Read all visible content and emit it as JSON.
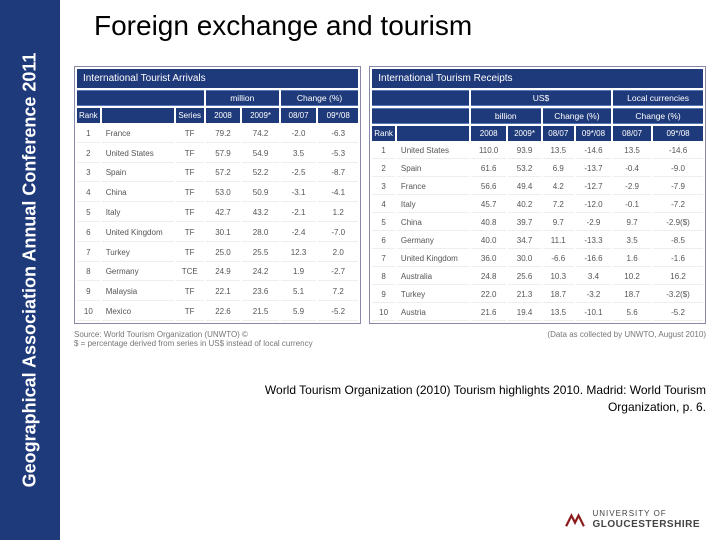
{
  "sidebar": {
    "label": "Geographical Association Annual Conference 2011"
  },
  "title": "Foreign exchange and tourism",
  "left_table": {
    "header_title": "International Tourist Arrivals",
    "group_headers": [
      "",
      "",
      "",
      "million",
      "Change (%)"
    ],
    "col_headers": [
      "Rank",
      "",
      "Series",
      "2008",
      "2009*",
      "08/07",
      "09*/08"
    ],
    "rows": [
      [
        "1",
        "France",
        "TF",
        "79.2",
        "74.2",
        "-2.0",
        "-6.3"
      ],
      [
        "2",
        "United States",
        "TF",
        "57.9",
        "54.9",
        "3.5",
        "-5.3"
      ],
      [
        "3",
        "Spain",
        "TF",
        "57.2",
        "52.2",
        "-2.5",
        "-8.7"
      ],
      [
        "4",
        "China",
        "TF",
        "53.0",
        "50.9",
        "-3.1",
        "-4.1"
      ],
      [
        "5",
        "Italy",
        "TF",
        "42.7",
        "43.2",
        "-2.1",
        "1.2"
      ],
      [
        "6",
        "United Kingdom",
        "TF",
        "30.1",
        "28.0",
        "-2.4",
        "-7.0"
      ],
      [
        "7",
        "Turkey",
        "TF",
        "25.0",
        "25.5",
        "12.3",
        "2.0"
      ],
      [
        "8",
        "Germany",
        "TCE",
        "24.9",
        "24.2",
        "1.9",
        "-2.7"
      ],
      [
        "9",
        "Malaysia",
        "TF",
        "22.1",
        "23.6",
        "5.1",
        "7.2"
      ],
      [
        "10",
        "Mexico",
        "TF",
        "22.6",
        "21.5",
        "5.9",
        "-5.2"
      ]
    ]
  },
  "right_table": {
    "header_title": "International Tourism Receipts",
    "group_headers": [
      "",
      "",
      "US$",
      "Local currencies"
    ],
    "group_sub": [
      "",
      "",
      "billion",
      "Change (%)",
      "Change (%)"
    ],
    "col_headers": [
      "Rank",
      "",
      "2008",
      "2009*",
      "08/07",
      "09*/08",
      "08/07",
      "09*/08"
    ],
    "rows": [
      [
        "1",
        "United States",
        "110.0",
        "93.9",
        "13.5",
        "-14.6",
        "13.5",
        "-14.6"
      ],
      [
        "2",
        "Spain",
        "61.6",
        "53.2",
        "6.9",
        "-13.7",
        "-0.4",
        "-9.0"
      ],
      [
        "3",
        "France",
        "56.6",
        "49.4",
        "4.2",
        "-12.7",
        "-2.9",
        "-7.9"
      ],
      [
        "4",
        "Italy",
        "45.7",
        "40.2",
        "7.2",
        "-12.0",
        "-0.1",
        "-7.2"
      ],
      [
        "5",
        "China",
        "40.8",
        "39.7",
        "9.7",
        "-2.9",
        "9.7",
        "-2.9($)"
      ],
      [
        "6",
        "Germany",
        "40.0",
        "34.7",
        "11.1",
        "-13.3",
        "3.5",
        "-8.5"
      ],
      [
        "7",
        "United Kingdom",
        "36.0",
        "30.0",
        "-6.6",
        "-16.6",
        "1.6",
        "-1.6"
      ],
      [
        "8",
        "Australia",
        "24.8",
        "25.6",
        "10.3",
        "3.4",
        "10.2",
        "16.2"
      ],
      [
        "9",
        "Turkey",
        "22.0",
        "21.3",
        "18.7",
        "-3.2",
        "18.7",
        "-3.2($)"
      ],
      [
        "10",
        "Austria",
        "21.6",
        "19.4",
        "13.5",
        "-10.1",
        "5.6",
        "-5.2"
      ]
    ]
  },
  "footnotes": {
    "left": "Source: World Tourism Organization (UNWTO) ©",
    "left2": "$ = percentage derived from series in US$ instead of local currency",
    "right": "(Data as collected by UNWTO, August 2010)"
  },
  "citation": {
    "line1": "World Tourism Organization (2010) Tourism highlights 2010. Madrid: World Tourism",
    "line2": "Organization, p. 6."
  },
  "logo": {
    "line1": "UNIVERSITY OF",
    "line2": "GLOUCESTERSHIRE"
  },
  "colors": {
    "brand_blue": "#1f3a7a",
    "logo_red": "#8b1a1a"
  }
}
